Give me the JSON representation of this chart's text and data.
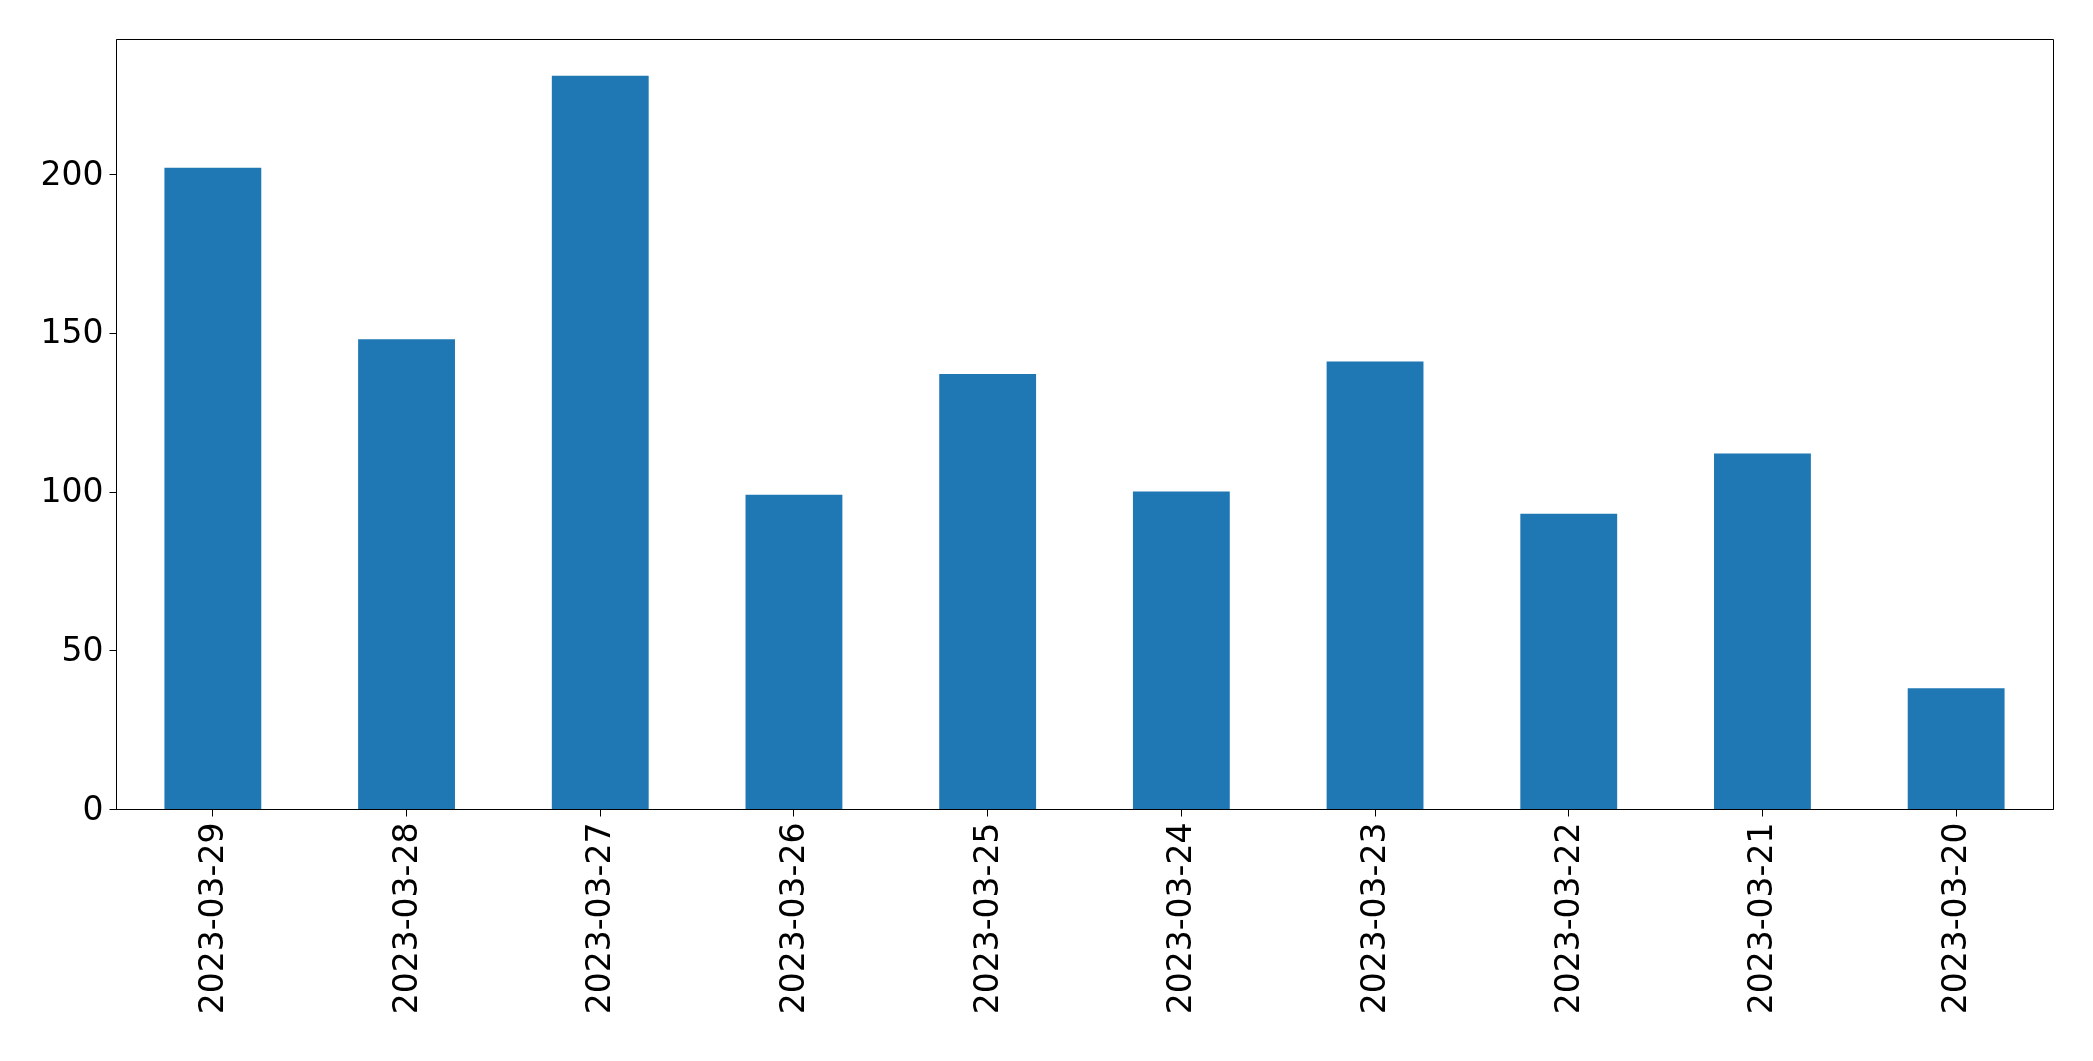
{
  "chart_data": {
    "type": "bar",
    "categories": [
      "2023-03-29",
      "2023-03-28",
      "2023-03-27",
      "2023-03-26",
      "2023-03-25",
      "2023-03-24",
      "2023-03-23",
      "2023-03-22",
      "2023-03-21",
      "2023-03-20"
    ],
    "values": [
      202,
      148,
      231,
      99,
      137,
      100,
      141,
      93,
      112,
      38
    ],
    "color": "#1f77b4",
    "ylim": [
      0,
      242.55
    ],
    "yticks": [
      0,
      50,
      100,
      150,
      200
    ]
  }
}
